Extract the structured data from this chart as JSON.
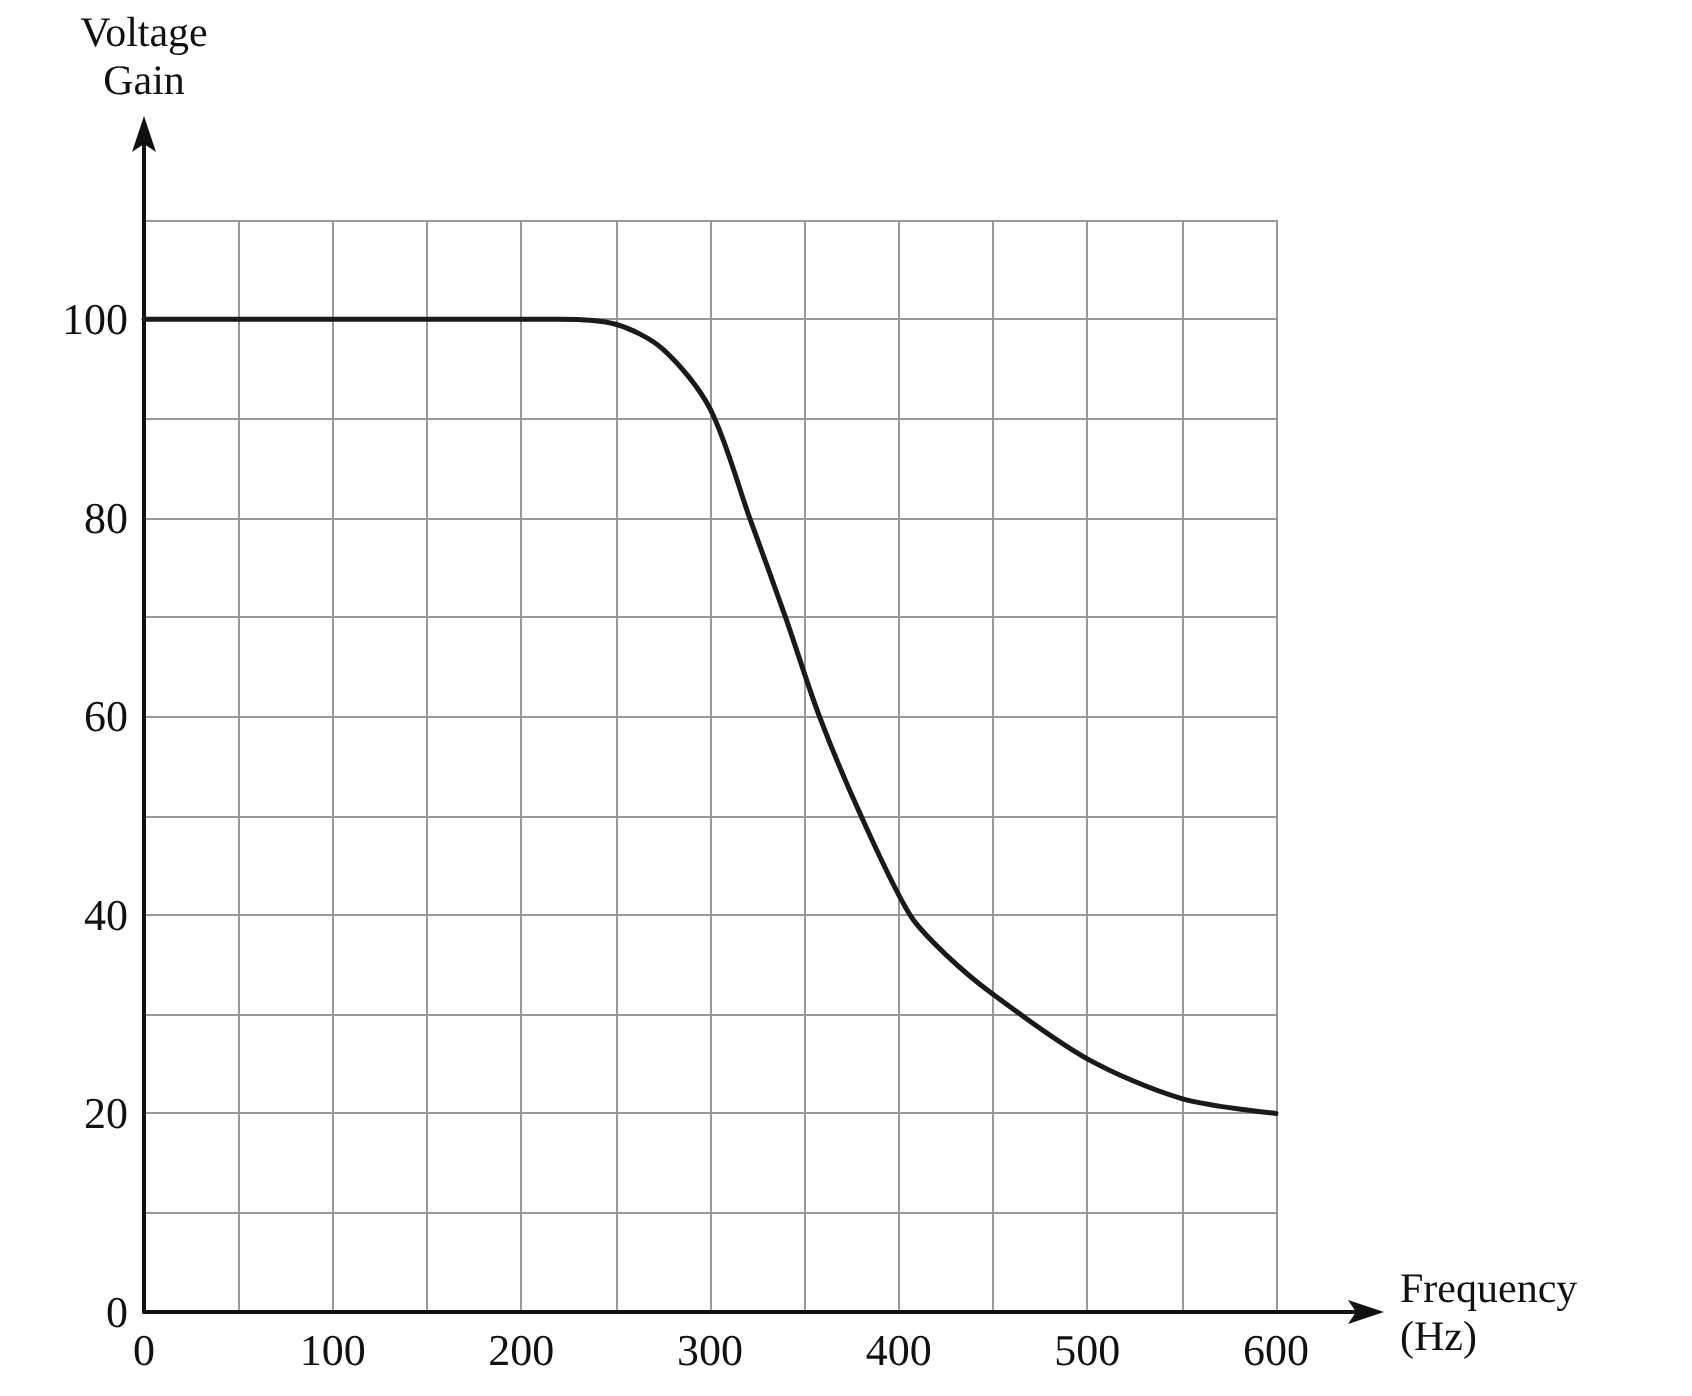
{
  "chart_data": {
    "type": "line",
    "xlabel": "Frequency\n(Hz)",
    "ylabel": "Voltage\nGain",
    "x": [
      0,
      100,
      200,
      220,
      250,
      275,
      300,
      321,
      340,
      358,
      380,
      406,
      425,
      450,
      500,
      550,
      600
    ],
    "series": [
      {
        "color": "#1a1a1a",
        "values": [
          100,
          100,
          100,
          100,
          99.5,
          97,
          91,
          80,
          70,
          60,
          50,
          40,
          36,
          32,
          25.5,
          21.5,
          20
        ]
      }
    ],
    "xlim": [
      0,
      600
    ],
    "xticks": [
      0,
      {
        "value": 50,
        "label": null
      },
      100,
      {
        "value": 150,
        "label": null
      },
      200,
      {
        "value": 250,
        "label": null
      },
      300,
      {
        "value": 350,
        "label": null
      },
      400,
      {
        "value": 450,
        "label": null
      },
      500,
      {
        "value": 550,
        "label": null
      },
      600
    ],
    "ylim": [
      0,
      110
    ],
    "yticks": [
      0,
      {
        "value": 10,
        "label": null
      },
      20,
      {
        "value": 30,
        "label": null
      },
      40,
      {
        "value": 50,
        "label": null
      },
      60,
      {
        "value": 70,
        "label": null
      },
      80,
      {
        "value": 90,
        "label": null
      },
      100,
      {
        "value": 110,
        "label": null
      }
    ],
    "grid": true,
    "marker": "none",
    "line_style": "solid"
  }
}
